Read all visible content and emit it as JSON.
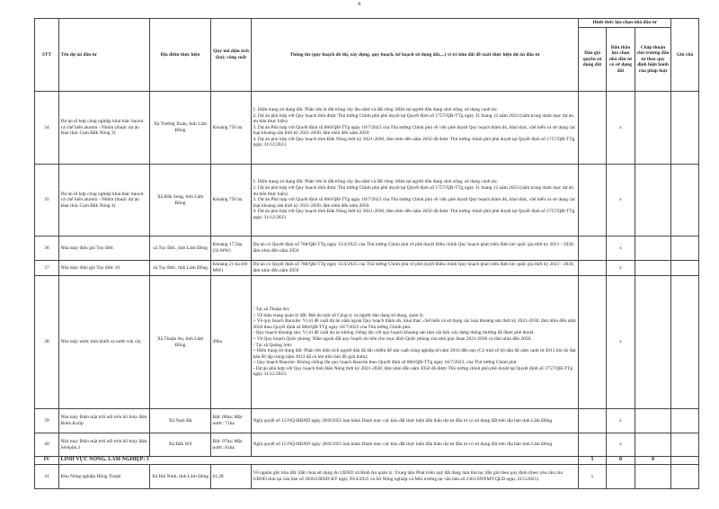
{
  "page_number": "4",
  "headers": {
    "stt": "STT",
    "name": "Tên dự án đầu tư",
    "location": "Địa điểm thực hiện",
    "scale": "Quy mô diện tích (ha); công suất",
    "info": "Thông tin (quy hoạch đô thị, xây dựng, quy hoạch, kế hoạch sử dụng đất,...) vị trí khu đất đề xuất thực hiện dự án đầu tư",
    "group": "Hình thức lựa chọn nhà đầu tư",
    "auction": "Đấu giá quyền sử dụng đất",
    "bidding": "Đấu thầu lựa chọn nhà đầu tư có sử dụng đất",
    "approval": "Chấp thuận chủ trương đầu tư theo quy định hiện hành của pháp luật",
    "note": "Ghi chú"
  },
  "rows": [
    {
      "stt": "34",
      "name": "Dự án tổ hợp công nghiệp khai thác bauxit và chế biến alumin - Nhôm (thuộc dự án khai thác Cụm Đắk Nông 3)",
      "location": "Xã Trường Xuân, tỉnh Lâm Đồng",
      "scale": "Khoảng 750 ha",
      "info": "1. Hiện trạng sử dụng đất: Phần lớn là đất trồng cây lâu năm và đất rừng. Hiện tại người dân đang sinh sống, sử dụng canh tác.\n2. Dự án phù hợp với Quy hoạch tỉnh được Thủ tướng Chính phủ phê duyệt tại Quyết định số 1757/QĐ-TTg ngày 31 tháng 12 năm 2023 (nằm trong danh mục dự án ưu tiên thực hiện)\n3. Dự án Phù hợp với Quyết định số 866/QĐ-TTg ngày 18/7/2023 của Thủ tướng Chính phủ về việc phê duyệt Quy hoạch thăm dò, khai thác, chế biến và sử dụng các loại khoáng sản thời kỳ 2021-2030, tầm nhìn đến năm 2050.\n4. Dự án phù hợp với Quy hoạch tỉnh Đắk Nông thời kỳ 2021-2030, tầm nhìn đến năm 2050 đã được Thủ tướng chính phủ phê duyệt tại Quyết định số 1757/QĐ-TTg ngày 31/12/2023.",
      "auction": "",
      "bidding": "x",
      "approval": "",
      "note": ""
    },
    {
      "stt": "35",
      "name": "Dự án tổ hợp công nghiệp khai thác bauxit và chế biến alumin - Nhôm (thuộc dự án khai thác Cụm Đắk Nông 4)",
      "location": "Xã Đắk Song, tỉnh Lâm Đồng",
      "scale": "Khoảng 750 ha",
      "info": "1. Hiện trạng sử dụng đất: Phần lớn là đất trồng cây lâu năm và đất rừng. Hiện tại người dân đang sinh sống, sử dụng canh tác.\n2. Dự án phù hợp với Quy hoạch tỉnh được Thủ tướng Chính phủ phê duyệt tại Quyết định số 1757/QĐ-TTg ngày 31 tháng 12 năm 2023 (nằm trong danh mục dự án ưu tiên thực hiện)\n3. Dự án Phù hợp với Quyết định số 866/QĐ-TTg ngày 18/7/2023 của Thủ tướng Chính phủ về việc phê duyệt Quy hoạch thăm dò, khai thác, chế biến và sử dụng các loại khoáng sản thời kỳ 2021-2030, tầm nhìn đến năm 2050.\n4. Dự án phù hợp với Quy hoạch tỉnh Đắk Nông thời kỳ 2021-2030, tầm nhìn đến năm 2050 đã được Thủ tướng chính phủ phê duyệt tại Quyết định số 1757/QĐ-TTg ngày 31/12/2023.",
      "auction": "",
      "bidding": "x",
      "approval": "",
      "note": ""
    },
    {
      "stt": "36",
      "name": "Nhà máy điện gió Tuy Đức",
      "location": "xã Tuy Đức, tỉnh Lâm Đồng",
      "scale": "Khoảng 17,5ha (50 MW)",
      "info": "Dự án có Quyết định số 768/QĐ-TTg ngày 15/4/2025 của Thủ tướng Chính phủ về phê duyệt Điều chỉnh Quy hoạch phát triển điện lực quốc gia thời kỳ 2021 - 2030, tầm nhìn đến năm 2050",
      "auction": "",
      "bidding": "x",
      "approval": "",
      "note": ""
    },
    {
      "stt": "37",
      "name": "Nhà máy điện gió Tuy Đức 10",
      "location": "xã Tuy Đức, tỉnh Lâm Đồng",
      "scale": "Khoảng 21 ha (60 MW)",
      "info": "Dự án có Quyết định số 768/QĐ-TTg ngày 15/4/2025 của Thủ tướng Chính phủ về phê duyệt Điều chỉnh Quy hoạch phát triển điện lực quốc gia thời kỳ 2021 - 2030, tầm nhìn đến năm 2050",
      "auction": "",
      "bidding": "x",
      "approval": "",
      "note": ""
    },
    {
      "stt": "38",
      "name": "Nhà máy nước tinh khiết và nước trái cây",
      "location": "Xã Thuận An, tỉnh Lâm Đồng",
      "scale": "49ha",
      "info": "- Tại xã Thuận An:\n + Về hiện trạng quản lý đất: Đất do một số Công ty và người dân đang sử dụng, quản lý.\n + Về quy hoạch Bauxite: Vị trí đề xuất dự án nằm ngoài Quy hoạch thăm dò, khai thác, chế biến và sử dụng các loại khoáng sản thời kỳ 2021-2030, tầm nhìn đến năm 2050 theo Quyết định số 866/QĐ-TTg ngày 18/7/2023 của Thủ tướng Chính phủ.\n - Quy hoạch khoáng sản: Vị trí đề xuất dự án không chồng lấn với quy hoạch khoáng sản làm vật liệu xây dựng thông thường đã được phê duyệt.\n + Về Quy hoạch Quốc phòng: Nằm ngoài đất quy hoạch ưu tiên cho mục đích Quốc phòng của tỉnh giai đoạn 2021-2030 và tầm nhìn đến 2050.\n - Tại xã Quảng Sơn:\n + Hiện trạng sử dụng đất: Phần lớn diện tích người dân đã lấn chiếm để sản xuất nông nghiệp từ năm 2016 đến nay (Có một số hộ dân đã xâm canh từ 2013 khi đo đạc bản đồ tập trung năm 2013 đã có tên trên bản đồ giải thửa);\n + Quy hoạch Bauxite: Không chồng lấn quy hoạch Bauxite theo Quyết định số 866/QĐ-TTg ngày 18/7/2023, của Thủ tướng Chính phủ.\n- Dự án phù hợp với Quy hoạch tỉnh Đắk Nông thời kỳ 2021-2030, tầm nhìn đến năm 2050 đã được Thủ tướng chính phủ phê duyệt tại Quyết định số 1757/QĐ-TTg ngày 31/12/2023.",
      "auction": "",
      "bidding": "x",
      "approval": "",
      "note": ""
    },
    {
      "stt": "39",
      "name": "Nhà máy Điện mặt trời nổi trên hồ thủy điện Buôn Kuốp",
      "location": "Xã Nam Đà",
      "scale": "Đất: 06ha; Mặt nước: 71ha",
      "info": "Nghị quyết số 15/NQ-HĐND ngày 28/8/2025 ban hành Danh mục các khu đất thực hiện đấu thầu dự án đầu tư có sử dụng đất trên địa bàn tỉnh Lâm Đồng",
      "auction": "",
      "bidding": "x",
      "approval": "",
      "note": ""
    },
    {
      "stt": "40",
      "name": "Nhà máy Điện mặt trời nổi trên hồ thủy điện Sêrêpôk 3",
      "location": "Xã Đắk Wil",
      "scale": "Đất: 07ha; Mặt nước: 81ha",
      "info": "Nghị quyết số 15/NQ-HĐND ngày 28/8/2025 ban hành Danh mục các khu đất thực hiện đấu thầu dự án đầu tư có sử dụng đất trên địa bàn tỉnh Lâm Đồng",
      "auction": "",
      "bidding": "x",
      "approval": "",
      "note": ""
    }
  ],
  "section": {
    "stt": "IV",
    "title": "LĨNH VỰC NÔNG, LÂM NGHIỆP: 5",
    "auction": "5",
    "bidding": "0",
    "approval": "0"
  },
  "rows2": [
    {
      "stt": "41",
      "name": "Khu Nông nghiệp Hồng Thuận",
      "location": "Xã Hải Ninh, tỉnh Lâm Đồng",
      "scale": "61,28",
      "info": "Về nguồn gốc khu đất: Đất chưa sử dụng do UBND xã Bình An quản lý, Trung tâm Phát triển quỹ đất đang làm thủ tục đấu giá theo quy định (theo yêu cầu của UBND tỉnh tại văn bản số 1836/UBND-KT ngày 29/4/2025 và Sở Nông nghiệp và Môi trường tại văn bản số 2361/SNNMT-QLĐ ngày 22/5/2025)",
      "auction": "x",
      "bidding": "",
      "approval": "",
      "note": ""
    }
  ]
}
